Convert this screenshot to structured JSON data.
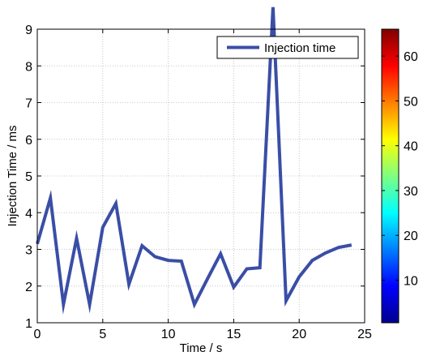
{
  "chart_data": {
    "type": "line",
    "xlabel": "Time / s",
    "ylabel": "Injection Time / ms",
    "xlim": [
      0,
      25
    ],
    "ylim": [
      1,
      9
    ],
    "xticks": [
      0,
      5,
      10,
      15,
      20,
      25
    ],
    "yticks": [
      1,
      2,
      3,
      4,
      5,
      6,
      7,
      8,
      9
    ],
    "grid": true,
    "legend_position": "top-right",
    "series": [
      {
        "name": "Injection time",
        "color": "#3a4ea6",
        "x": [
          0,
          1,
          2,
          3,
          4,
          5,
          6,
          7,
          8,
          9,
          10,
          11,
          12,
          13,
          14,
          15,
          16,
          17,
          18,
          19,
          20,
          21,
          22,
          23,
          24
        ],
        "y": [
          3.15,
          4.4,
          1.5,
          3.3,
          1.5,
          3.6,
          4.25,
          2.05,
          3.1,
          2.8,
          2.7,
          2.68,
          1.5,
          2.2,
          2.88,
          1.97,
          2.47,
          2.5,
          9.6,
          1.6,
          2.25,
          2.7,
          2.9,
          3.05,
          3.12
        ]
      }
    ],
    "colorbar": {
      "range": [
        0.5,
        66
      ],
      "ticks": [
        10,
        20,
        30,
        40,
        50,
        60
      ],
      "colormap": "jet"
    }
  }
}
